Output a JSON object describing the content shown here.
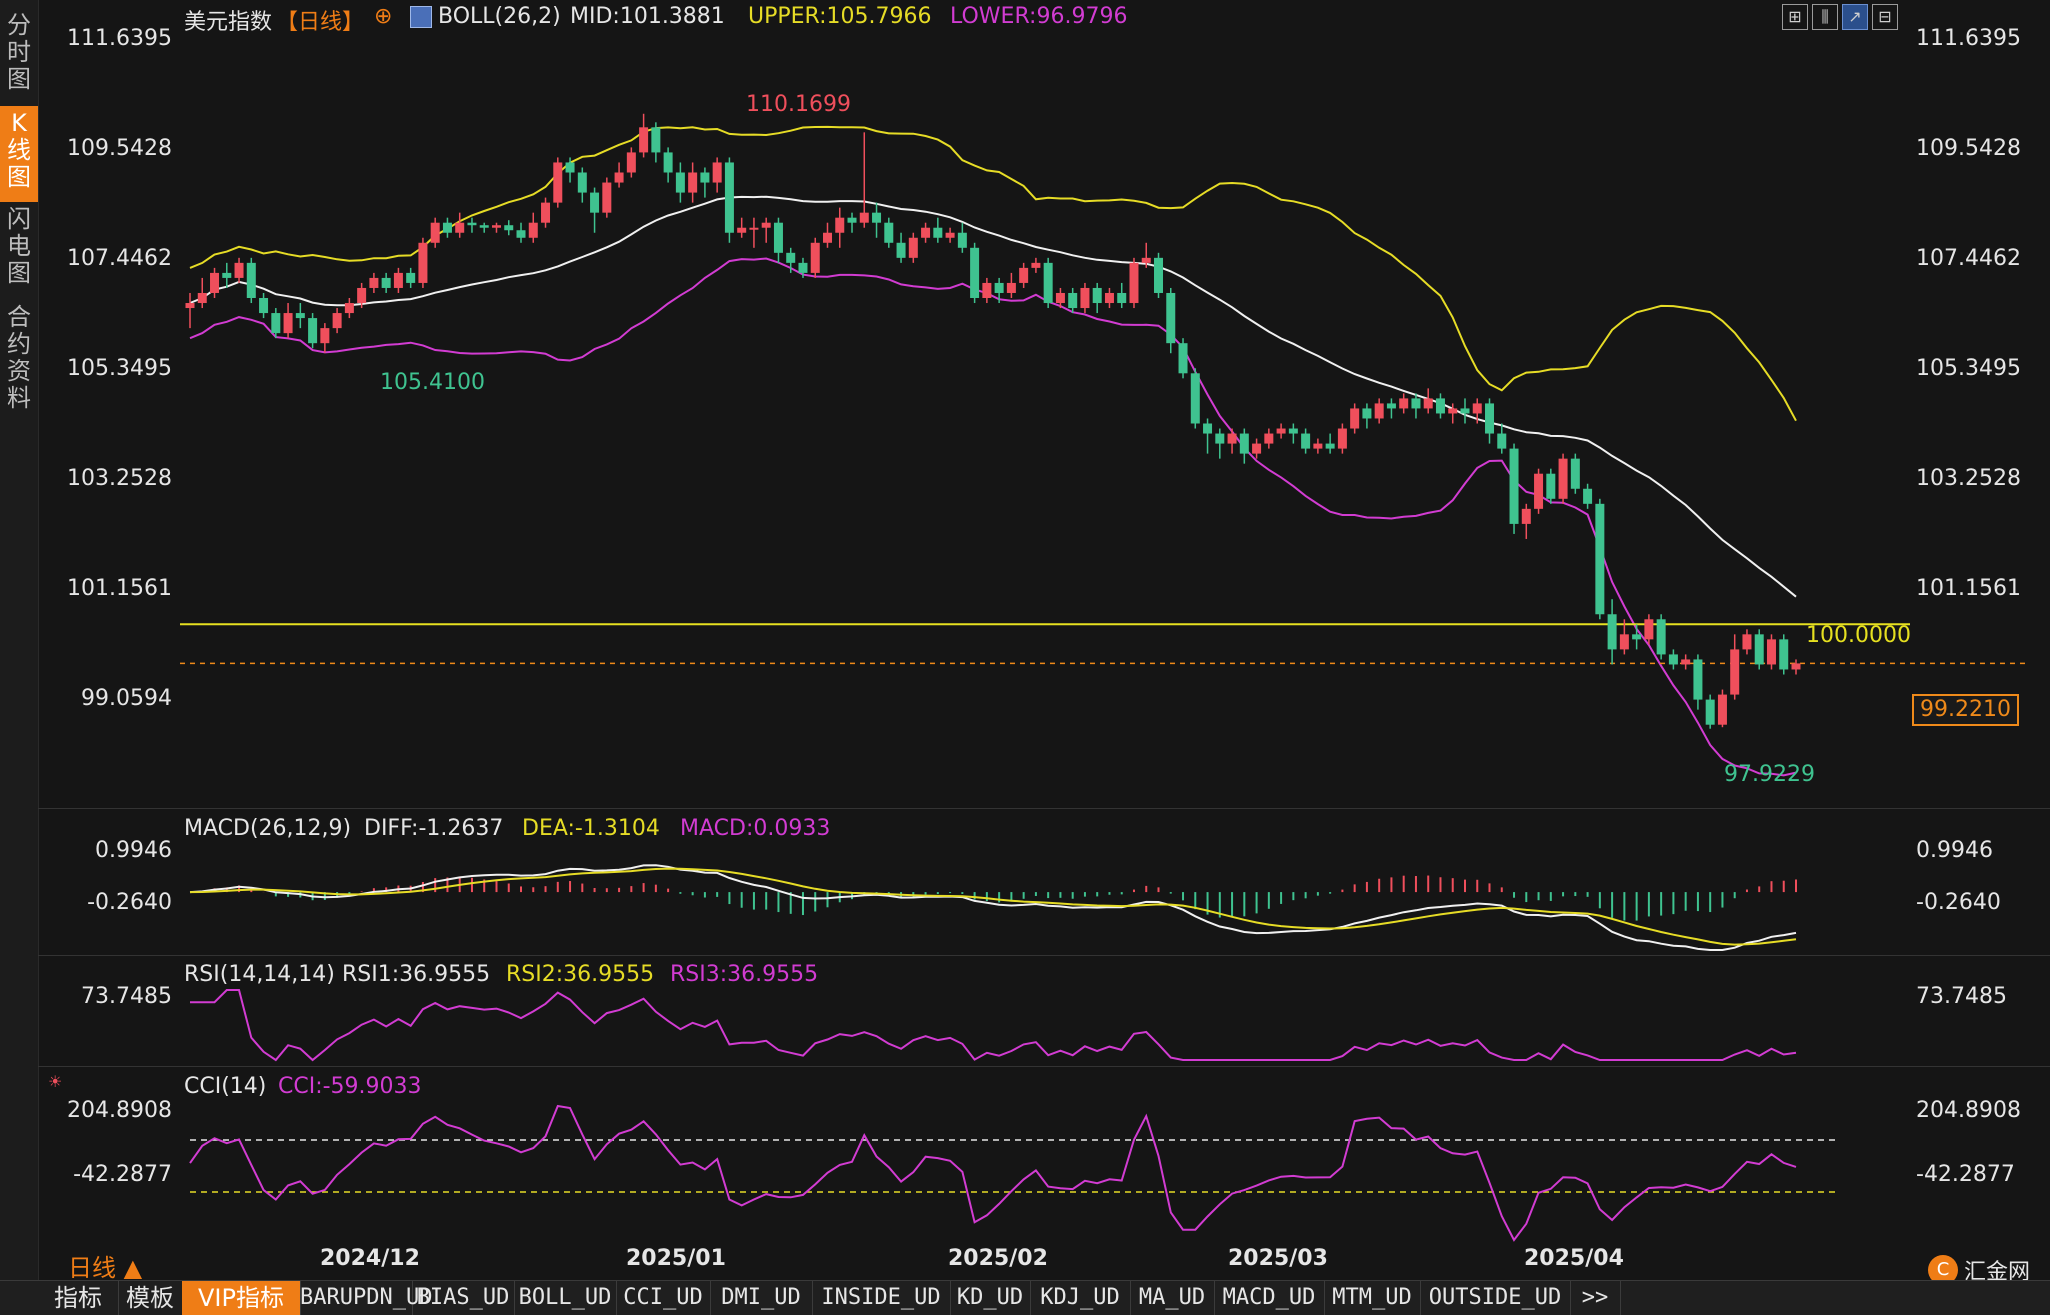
{
  "sidebar": {
    "tabs": [
      {
        "chars": [
          "分",
          "时",
          "图"
        ]
      },
      {
        "chars": [
          "K",
          "线",
          "图"
        ],
        "active": true
      },
      {
        "chars": [
          "闪",
          "电",
          "图"
        ]
      },
      {
        "chars": [
          "合",
          "约",
          "资",
          "料"
        ]
      }
    ]
  },
  "header": {
    "symbol": "美元指数",
    "period_bracket": "【日线】",
    "add_icon": "⊕",
    "boll_label": "BOLL(26,2)",
    "mid_text": "MID:101.3881",
    "upper_text": "UPPER:105.7966",
    "lower_text": "LOWER:96.9796"
  },
  "toolbar_icons": [
    "grid-icon",
    "candle-icon",
    "line-chart-icon",
    "split-icon"
  ],
  "price_axis": {
    "ticks": [
      "111.6395",
      "109.5428",
      "107.4462",
      "105.3495",
      "103.2528",
      "101.1561",
      "99.0594"
    ],
    "current_price": "99.2210",
    "hline_label": "100.0000",
    "high_label": "110.1699",
    "low_label_left": "105.4100",
    "low_label_right": "97.9229"
  },
  "macd": {
    "label": "MACD(26,12,9)",
    "diff": "DIFF:-1.2637",
    "dea": "DEA:-1.3104",
    "macd": "MACD:0.0933",
    "ticks": [
      "0.9946",
      "-0.2640"
    ]
  },
  "rsi": {
    "label": "RSI(14,14,14)",
    "rsi1": "RSI1:36.9555",
    "rsi2": "RSI2:36.9555",
    "rsi3": "RSI3:36.9555",
    "ticks": [
      "73.7485"
    ]
  },
  "cci": {
    "label": "CCI(14)",
    "cci": "CCI:-59.9033",
    "ticks": [
      "204.8908",
      "-42.2877"
    ]
  },
  "dates": [
    "2024/12",
    "2025/01",
    "2025/02",
    "2025/03",
    "2025/04"
  ],
  "period_switch": "日线 ▲",
  "bottom_tabs": [
    "指标",
    "模板",
    "VIP指标",
    "BARUPDN_UD",
    "BIAS_UD",
    "BOLL_UD",
    "CCI_UD",
    "DMI_UD",
    "INSIDE_UD",
    "KD_UD",
    "KDJ_UD",
    "MA_UD",
    "MACD_UD",
    "MTM_UD",
    "OUTSIDE_UD",
    ">>"
  ],
  "logo_text": "汇金网",
  "logo_url": "www.gold678.com",
  "colors": {
    "up": "#ef4f5c",
    "down": "#3fc390",
    "upper": "#e6dc26",
    "mid": "#f0f0f0",
    "lower": "#d23cd2",
    "accent": "#ef7d16",
    "hline": "#e6e020"
  },
  "chart_data": {
    "type": "candlestick",
    "title": "美元指数 日线",
    "price_range": [
      96.5,
      111.6395
    ],
    "candles": [
      [
        106.3,
        106.4,
        105.9,
        106.6
      ],
      [
        106.4,
        106.6,
        106.3,
        106.9
      ],
      [
        106.6,
        107.0,
        106.5,
        107.1
      ],
      [
        107.0,
        106.9,
        106.7,
        107.2
      ],
      [
        106.9,
        107.2,
        106.8,
        107.3
      ],
      [
        107.2,
        106.5,
        106.4,
        107.3
      ],
      [
        106.5,
        106.2,
        106.1,
        106.6
      ],
      [
        106.2,
        105.8,
        105.7,
        106.3
      ],
      [
        105.8,
        106.2,
        105.7,
        106.4
      ],
      [
        106.2,
        106.1,
        105.9,
        106.4
      ],
      [
        106.1,
        105.6,
        105.5,
        106.2
      ],
      [
        105.6,
        105.9,
        105.41,
        106.0
      ],
      [
        105.9,
        106.2,
        105.8,
        106.3
      ],
      [
        106.2,
        106.4,
        106.1,
        106.5
      ],
      [
        106.4,
        106.7,
        106.3,
        106.8
      ],
      [
        106.7,
        106.9,
        106.6,
        107.0
      ],
      [
        106.9,
        106.7,
        106.6,
        107.0
      ],
      [
        106.7,
        107.0,
        106.6,
        107.1
      ],
      [
        107.0,
        106.8,
        106.7,
        107.1
      ],
      [
        106.8,
        107.6,
        106.7,
        107.7
      ],
      [
        107.6,
        108.0,
        107.5,
        108.1
      ],
      [
        108.0,
        107.8,
        107.7,
        108.1
      ],
      [
        107.8,
        108.0,
        107.7,
        108.2
      ],
      [
        108.0,
        107.95,
        107.8,
        108.1
      ],
      [
        107.95,
        107.9,
        107.8,
        108.0
      ],
      [
        107.9,
        107.95,
        107.8,
        108.0
      ],
      [
        107.95,
        107.85,
        107.75,
        108.05
      ],
      [
        107.85,
        107.7,
        107.6,
        108.0
      ],
      [
        107.7,
        108.0,
        107.6,
        108.2
      ],
      [
        108.0,
        108.4,
        107.9,
        108.5
      ],
      [
        108.4,
        109.2,
        108.3,
        109.3
      ],
      [
        109.2,
        109.0,
        108.8,
        109.3
      ],
      [
        109.0,
        108.6,
        108.4,
        109.1
      ],
      [
        108.6,
        108.2,
        107.8,
        108.7
      ],
      [
        108.2,
        108.8,
        108.1,
        108.9
      ],
      [
        108.8,
        109.0,
        108.7,
        109.2
      ],
      [
        109.0,
        109.4,
        108.9,
        109.5
      ],
      [
        109.4,
        109.9,
        109.3,
        110.17
      ],
      [
        109.9,
        109.4,
        109.2,
        110.0
      ],
      [
        109.4,
        109.0,
        108.8,
        109.5
      ],
      [
        109.0,
        108.6,
        108.4,
        109.2
      ],
      [
        108.6,
        109.0,
        108.4,
        109.2
      ],
      [
        109.0,
        108.8,
        108.5,
        109.1
      ],
      [
        108.8,
        109.2,
        108.6,
        109.3
      ],
      [
        109.2,
        107.8,
        107.6,
        109.3
      ],
      [
        107.8,
        107.9,
        107.7,
        108.1
      ],
      [
        107.9,
        107.9,
        107.5,
        108.1
      ],
      [
        107.9,
        108.0,
        107.6,
        108.1
      ],
      [
        108.0,
        107.4,
        107.2,
        108.1
      ],
      [
        107.4,
        107.2,
        107.0,
        107.5
      ],
      [
        107.2,
        107.0,
        106.9,
        107.3
      ],
      [
        107.0,
        107.6,
        106.9,
        107.7
      ],
      [
        107.6,
        107.8,
        107.5,
        108.0
      ],
      [
        107.8,
        108.1,
        107.5,
        108.3
      ],
      [
        108.1,
        108.0,
        107.8,
        108.2
      ],
      [
        108.0,
        108.2,
        107.9,
        109.8
      ],
      [
        108.2,
        108.0,
        107.7,
        108.4
      ],
      [
        108.0,
        107.6,
        107.5,
        108.1
      ],
      [
        107.6,
        107.3,
        107.2,
        107.8
      ],
      [
        107.3,
        107.7,
        107.2,
        107.8
      ],
      [
        107.7,
        107.9,
        107.6,
        108.0
      ],
      [
        107.9,
        107.7,
        107.6,
        108.1
      ],
      [
        107.7,
        107.8,
        107.6,
        107.9
      ],
      [
        107.8,
        107.5,
        107.4,
        108.0
      ],
      [
        107.5,
        106.5,
        106.4,
        107.6
      ],
      [
        106.5,
        106.8,
        106.4,
        106.9
      ],
      [
        106.8,
        106.6,
        106.4,
        106.9
      ],
      [
        106.6,
        106.8,
        106.5,
        107.0
      ],
      [
        106.8,
        107.1,
        106.7,
        107.2
      ],
      [
        107.1,
        107.2,
        107.0,
        107.3
      ],
      [
        107.2,
        106.4,
        106.3,
        107.3
      ],
      [
        106.4,
        106.6,
        106.3,
        106.7
      ],
      [
        106.6,
        106.3,
        106.2,
        106.7
      ],
      [
        106.3,
        106.7,
        106.2,
        106.8
      ],
      [
        106.7,
        106.4,
        106.2,
        106.8
      ],
      [
        106.4,
        106.6,
        106.3,
        106.7
      ],
      [
        106.6,
        106.4,
        106.3,
        106.8
      ],
      [
        106.4,
        107.2,
        106.3,
        107.3
      ],
      [
        107.2,
        107.3,
        107.1,
        107.6
      ],
      [
        107.3,
        106.6,
        106.5,
        107.4
      ],
      [
        106.6,
        105.6,
        105.4,
        106.7
      ],
      [
        105.6,
        105.0,
        104.9,
        105.7
      ],
      [
        105.0,
        104.0,
        103.9,
        105.1
      ],
      [
        104.0,
        103.8,
        103.4,
        104.1
      ],
      [
        103.8,
        103.6,
        103.3,
        103.9
      ],
      [
        103.6,
        103.8,
        103.4,
        103.9
      ],
      [
        103.8,
        103.4,
        103.2,
        103.9
      ],
      [
        103.4,
        103.6,
        103.3,
        103.7
      ],
      [
        103.6,
        103.8,
        103.5,
        103.9
      ],
      [
        103.8,
        103.9,
        103.7,
        104.0
      ],
      [
        103.9,
        103.8,
        103.6,
        104.0
      ],
      [
        103.8,
        103.5,
        103.4,
        103.9
      ],
      [
        103.5,
        103.6,
        103.4,
        103.7
      ],
      [
        103.6,
        103.5,
        103.4,
        103.8
      ],
      [
        103.5,
        103.9,
        103.4,
        104.0
      ],
      [
        103.9,
        104.3,
        103.8,
        104.4
      ],
      [
        104.3,
        104.1,
        103.9,
        104.4
      ],
      [
        104.1,
        104.4,
        104.0,
        104.5
      ],
      [
        104.4,
        104.3,
        104.1,
        104.5
      ],
      [
        104.3,
        104.5,
        104.2,
        104.6
      ],
      [
        104.5,
        104.3,
        104.1,
        104.6
      ],
      [
        104.3,
        104.5,
        104.2,
        104.7
      ],
      [
        104.5,
        104.2,
        104.1,
        104.6
      ],
      [
        104.2,
        104.3,
        104.0,
        104.4
      ],
      [
        104.3,
        104.2,
        104.0,
        104.5
      ],
      [
        104.2,
        104.4,
        104.0,
        104.5
      ],
      [
        104.4,
        103.8,
        103.6,
        104.5
      ],
      [
        103.8,
        103.5,
        103.4,
        104.0
      ],
      [
        103.5,
        102.0,
        101.8,
        103.6
      ],
      [
        102.0,
        102.3,
        101.7,
        102.4
      ],
      [
        102.3,
        103.0,
        102.2,
        103.1
      ],
      [
        103.0,
        102.5,
        102.4,
        103.1
      ],
      [
        102.5,
        103.3,
        102.4,
        103.4
      ],
      [
        103.3,
        102.7,
        102.6,
        103.4
      ],
      [
        102.7,
        102.4,
        102.3,
        102.8
      ],
      [
        102.4,
        100.2,
        100.1,
        102.5
      ],
      [
        100.2,
        99.5,
        99.2,
        100.5
      ],
      [
        99.5,
        99.8,
        99.4,
        100.1
      ],
      [
        99.8,
        99.7,
        99.5,
        100.0
      ],
      [
        99.7,
        100.1,
        99.6,
        100.2
      ],
      [
        100.1,
        99.4,
        99.3,
        100.2
      ],
      [
        99.4,
        99.2,
        99.1,
        99.5
      ],
      [
        99.2,
        99.3,
        99.1,
        99.4
      ],
      [
        99.3,
        98.5,
        98.3,
        99.4
      ],
      [
        98.5,
        98.0,
        97.92,
        98.6
      ],
      [
        98.0,
        98.6,
        97.95,
        98.7
      ],
      [
        98.6,
        99.5,
        98.5,
        99.8
      ],
      [
        99.5,
        99.8,
        99.4,
        99.9
      ],
      [
        99.8,
        99.2,
        99.1,
        99.9
      ],
      [
        99.2,
        99.7,
        99.1,
        99.8
      ],
      [
        99.7,
        99.1,
        99.0,
        99.8
      ],
      [
        99.1,
        99.221,
        99.0,
        99.3
      ]
    ]
  }
}
